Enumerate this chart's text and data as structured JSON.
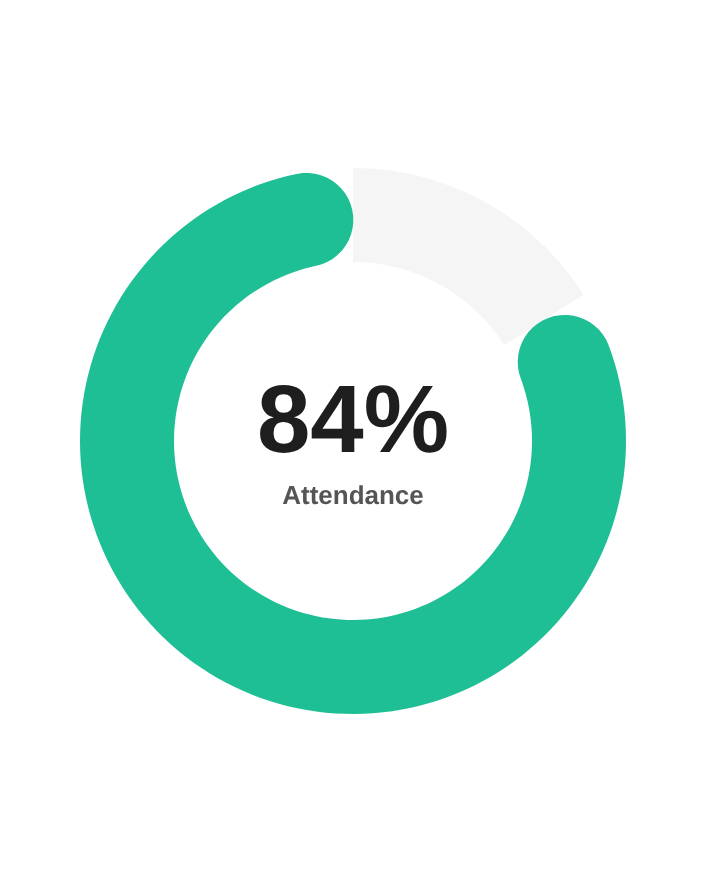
{
  "chart_data": {
    "type": "donut",
    "categories": [
      null,
      null
    ],
    "values": [
      84,
      16
    ],
    "colors": [
      "#1fbf95",
      "#f5f5f5"
    ],
    "value_labels": [
      "84%",
      null
    ],
    "annotations": [
      "Attendance"
    ]
  }
}
